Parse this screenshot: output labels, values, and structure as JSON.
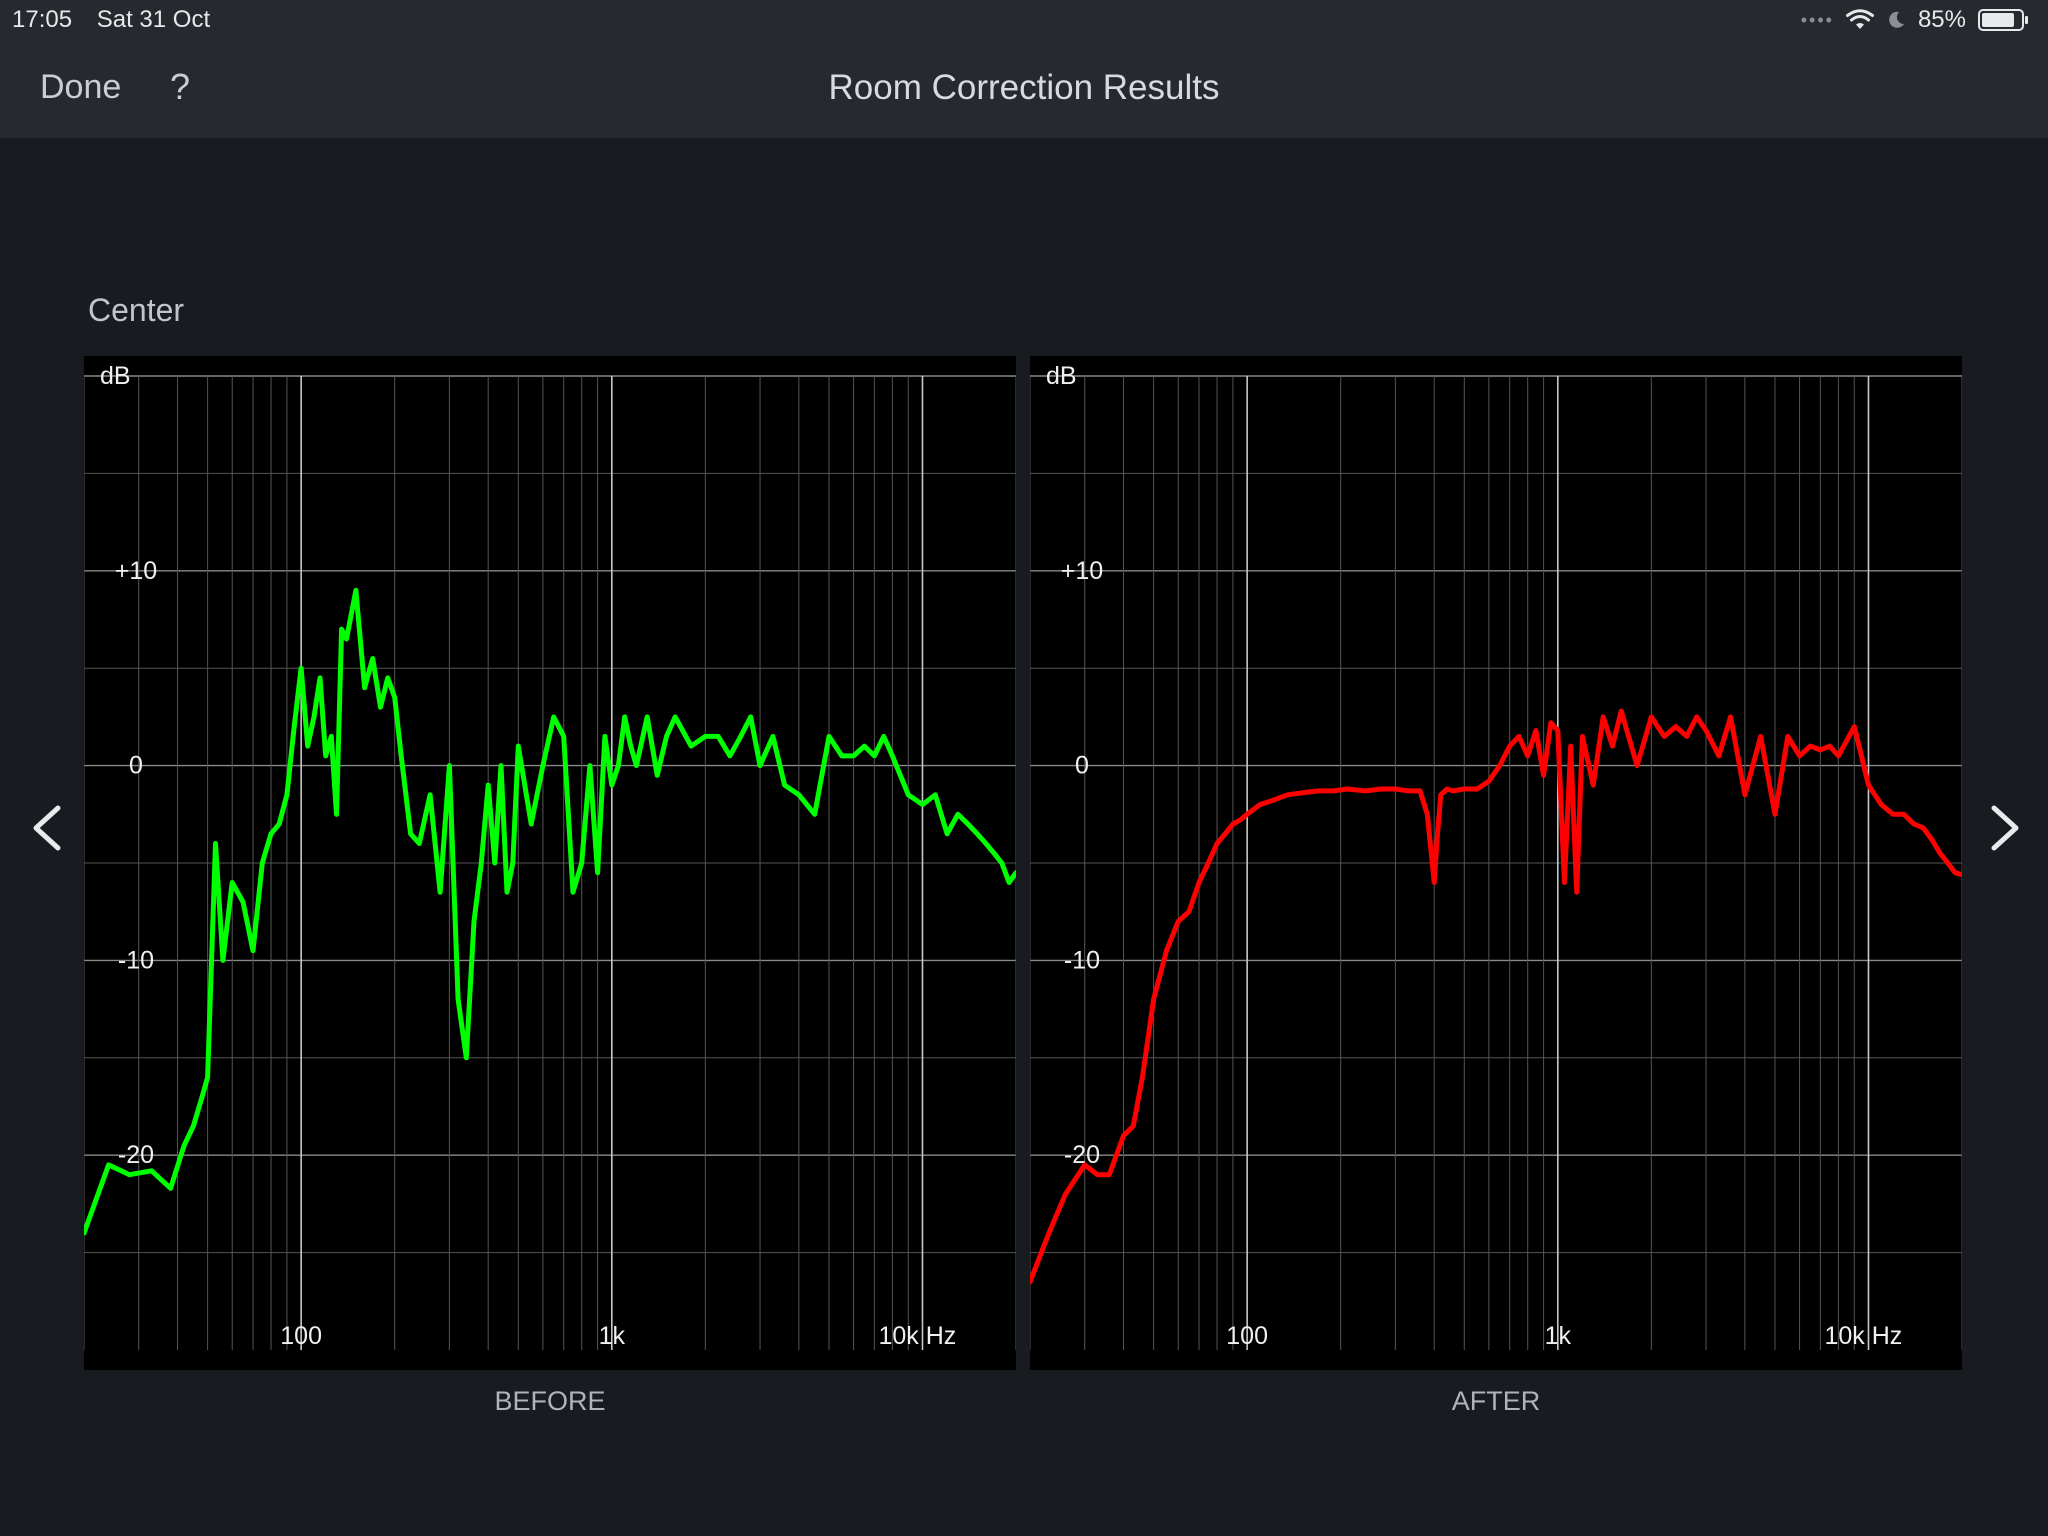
{
  "status_bar": {
    "time": "17:05",
    "date": "Sat 31 Oct",
    "battery_percent": "85%",
    "battery_level": 0.85,
    "icons": [
      "signal-dots-icon",
      "wifi-icon",
      "moon-icon",
      "battery-icon"
    ]
  },
  "nav": {
    "done_label": "Done",
    "help_label": "?",
    "title": "Room Correction Results"
  },
  "channel": "Center",
  "colors": {
    "before_line": "#00ff00",
    "after_line": "#ff0000",
    "grid": "#6e6e6e",
    "background": "#000000"
  },
  "icons": {
    "prev": "chevron-left-icon",
    "next": "chevron-right-icon"
  },
  "chart_data": [
    {
      "type": "line",
      "caption": "BEFORE",
      "ylabel": "dB",
      "xscale": "log",
      "xlim": [
        20,
        20000
      ],
      "ylim": [
        -30,
        20
      ],
      "y_ticks": [
        {
          "value": 10,
          "label": "+10"
        },
        {
          "value": 0,
          "label": "0"
        },
        {
          "value": -10,
          "label": "-10"
        },
        {
          "value": -20,
          "label": "-20"
        }
      ],
      "x_ticks": [
        {
          "value": 100,
          "label": "100"
        },
        {
          "value": 1000,
          "label": "1k"
        },
        {
          "value": 10000,
          "label": "10k Hz"
        }
      ],
      "grid": true,
      "series": [
        {
          "color": "#00ff00",
          "x": [
            20,
            24,
            28,
            33,
            38,
            42,
            45,
            48,
            50,
            53,
            56,
            60,
            65,
            70,
            75,
            80,
            85,
            90,
            95,
            100,
            105,
            110,
            115,
            120,
            125,
            130,
            135,
            140,
            150,
            160,
            170,
            180,
            190,
            200,
            210,
            225,
            240,
            260,
            280,
            300,
            320,
            340,
            360,
            380,
            400,
            420,
            440,
            460,
            480,
            500,
            550,
            600,
            650,
            700,
            750,
            800,
            850,
            900,
            950,
            1000,
            1050,
            1100,
            1150,
            1200,
            1300,
            1400,
            1500,
            1600,
            1800,
            2000,
            2200,
            2400,
            2600,
            2800,
            3000,
            3300,
            3600,
            4000,
            4500,
            5000,
            5500,
            6000,
            6500,
            7000,
            7500,
            8000,
            9000,
            10000,
            11000,
            12000,
            13000,
            14000,
            15000,
            16000,
            17000,
            18000,
            19000,
            20000
          ],
          "y": [
            -24,
            -20.5,
            -21,
            -20.8,
            -21.7,
            -19.5,
            -18.5,
            -17,
            -16,
            -4,
            -10,
            -6,
            -7,
            -9.5,
            -5,
            -3.5,
            -3,
            -1.5,
            2,
            5,
            1,
            2.5,
            4.5,
            0.5,
            1.5,
            -2.5,
            7,
            6.5,
            9,
            4,
            5.5,
            3,
            4.5,
            3.5,
            0.5,
            -3.5,
            -4,
            -1.5,
            -6.5,
            0,
            -12,
            -15,
            -8,
            -5,
            -1,
            -5,
            0,
            -6.5,
            -5,
            1,
            -3,
            0,
            2.5,
            1.5,
            -6.5,
            -5,
            0,
            -5.5,
            1.5,
            -1,
            0,
            2.5,
            1,
            0,
            2.5,
            -0.5,
            1.5,
            2.5,
            1,
            1.5,
            1.5,
            0.5,
            1.5,
            2.5,
            0,
            1.5,
            -1,
            -1.5,
            -2.5,
            1.5,
            0.5,
            0.5,
            1,
            0.5,
            1.5,
            0.5,
            -1.5,
            -2,
            -1.5,
            -3.5,
            -2.5,
            -3,
            -3.5,
            -4,
            -4.5,
            -5,
            -6,
            -5.5
          ]
        }
      ]
    },
    {
      "type": "line",
      "caption": "AFTER",
      "ylabel": "dB",
      "xscale": "log",
      "xlim": [
        20,
        20000
      ],
      "ylim": [
        -30,
        20
      ],
      "y_ticks": [
        {
          "value": 10,
          "label": "+10"
        },
        {
          "value": 0,
          "label": "0"
        },
        {
          "value": -10,
          "label": "-10"
        },
        {
          "value": -20,
          "label": "-20"
        }
      ],
      "x_ticks": [
        {
          "value": 100,
          "label": "100"
        },
        {
          "value": 1000,
          "label": "1k"
        },
        {
          "value": 10000,
          "label": "10k Hz"
        }
      ],
      "grid": true,
      "series": [
        {
          "color": "#ff0000",
          "x": [
            20,
            23,
            26,
            30,
            33,
            36,
            40,
            43,
            46,
            50,
            55,
            60,
            65,
            70,
            75,
            80,
            85,
            90,
            95,
            100,
            110,
            120,
            135,
            150,
            170,
            190,
            210,
            240,
            270,
            300,
            330,
            360,
            380,
            400,
            410,
            420,
            440,
            460,
            500,
            550,
            600,
            650,
            700,
            750,
            800,
            850,
            900,
            950,
            1000,
            1050,
            1100,
            1150,
            1200,
            1300,
            1400,
            1500,
            1600,
            1800,
            2000,
            2200,
            2400,
            2600,
            2800,
            3000,
            3300,
            3600,
            4000,
            4500,
            5000,
            5500,
            6000,
            6500,
            7000,
            7500,
            8000,
            9000,
            10000,
            11000,
            12000,
            13000,
            14000,
            15000,
            16000,
            17000,
            18000,
            19000,
            20000
          ],
          "y": [
            -26.5,
            -24,
            -22,
            -20.5,
            -21,
            -21,
            -19,
            -18.5,
            -16,
            -12,
            -9.5,
            -8,
            -7.5,
            -6,
            -5,
            -4,
            -3.5,
            -3,
            -2.8,
            -2.5,
            -2,
            -1.8,
            -1.5,
            -1.4,
            -1.3,
            -1.3,
            -1.2,
            -1.3,
            -1.2,
            -1.2,
            -1.3,
            -1.3,
            -2.5,
            -6,
            -3.5,
            -1.5,
            -1.2,
            -1.3,
            -1.2,
            -1.2,
            -0.8,
            0,
            1,
            1.5,
            0.5,
            1.8,
            -0.5,
            2.2,
            1.8,
            -6,
            1,
            -6.5,
            1.5,
            -1,
            2.5,
            1,
            2.8,
            0,
            2.5,
            1.5,
            2,
            1.5,
            2.5,
            1.8,
            0.5,
            2.5,
            -1.5,
            1.5,
            -2.5,
            1.5,
            0.5,
            1,
            0.8,
            1,
            0.5,
            2,
            -1,
            -2,
            -2.5,
            -2.5,
            -3,
            -3.2,
            -3.8,
            -4.5,
            -5,
            -5.5,
            -5.6
          ]
        }
      ]
    }
  ]
}
